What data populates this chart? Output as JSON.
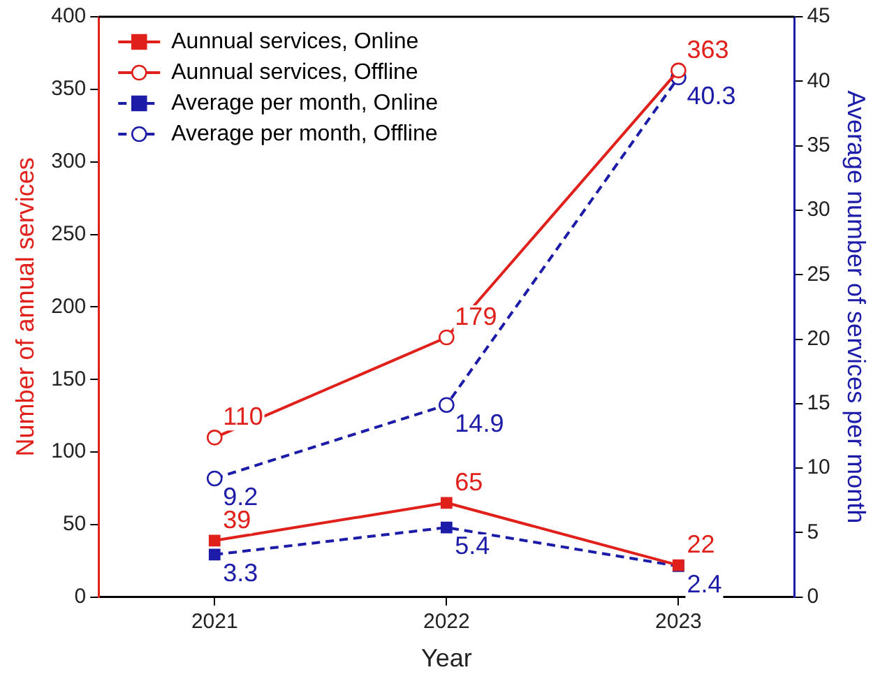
{
  "chart_data": {
    "type": "line",
    "xlabel": "Year",
    "ylabel": "Number of annual services",
    "y2label": "Average number of services per month",
    "categories": [
      "2021",
      "2022",
      "2023"
    ],
    "series": [
      {
        "name": "Aunnual services, Online",
        "color": "#e0201b",
        "values": [
          39,
          65,
          22
        ],
        "marker": "square",
        "line_style": "solid"
      },
      {
        "name": "Aunnual services, Offline",
        "color": "#e0201b",
        "values": [
          110,
          179,
          363
        ],
        "marker": "circle",
        "line_style": "solid"
      },
      {
        "name": "Average per month, Online",
        "color": "#1c1ca8",
        "values": [
          3.3,
          5.4,
          2.4
        ],
        "marker": "square",
        "line_style": "dashed",
        "axis": "y2"
      },
      {
        "name": "Average per month, Offline",
        "color": "#1c1ca8",
        "values": [
          9.2,
          14.9,
          40.3
        ],
        "marker": "circle",
        "line_style": "dashed",
        "axis": "y2"
      }
    ],
    "ylim": [
      0,
      400
    ],
    "yticks": [
      0,
      50,
      100,
      150,
      200,
      250,
      300,
      350,
      400
    ],
    "y2lim": [
      0,
      45
    ],
    "y2ticks": [
      0,
      5,
      10,
      15,
      20,
      25,
      30,
      35,
      40,
      45
    ],
    "legend": "top left",
    "grid": false,
    "data_labels": true
  }
}
